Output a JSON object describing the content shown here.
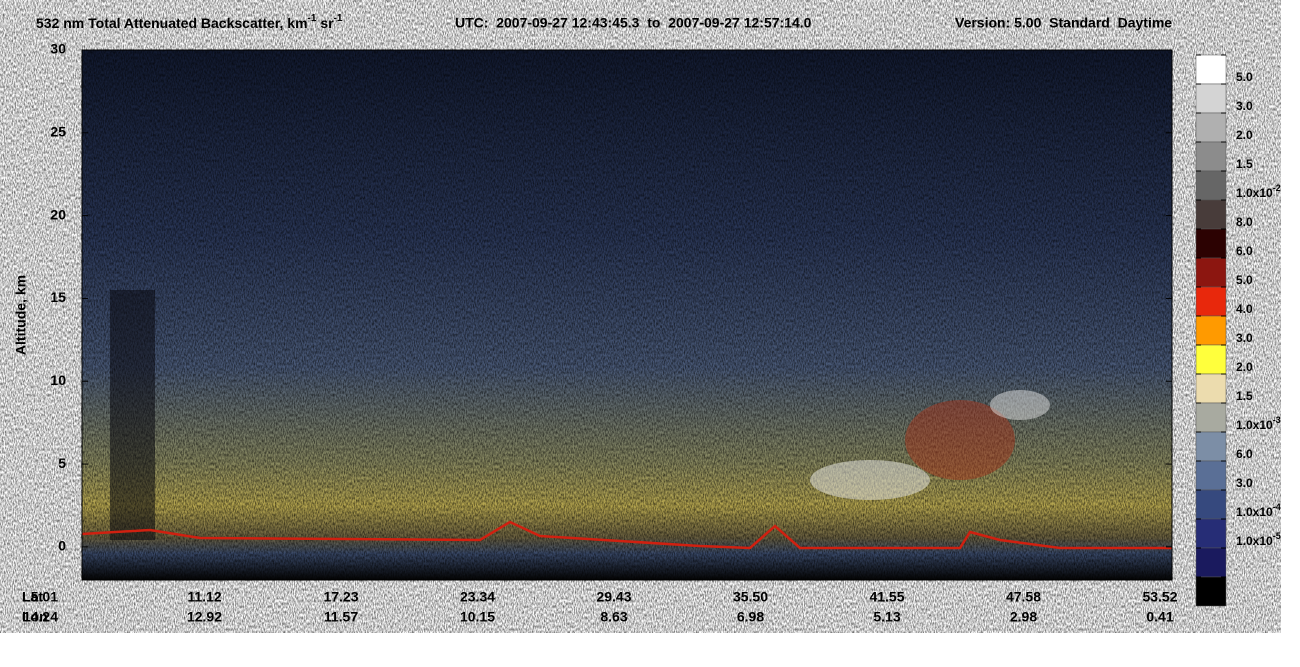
{
  "chart_data": {
    "type": "heatmap",
    "title_parts": [
      {
        "text": "532 nm Total Attenuated Backscatter, km"
      },
      {
        "sup": "-1"
      },
      {
        "text": " sr"
      },
      {
        "sup": "-1"
      }
    ],
    "utc": "UTC:  2007-09-27 12:43:45.3  to  2007-09-27 12:57:14.0",
    "version": "Version: 5.00  Standard  Daytime",
    "y_label": "Altitude, km",
    "ylim": [
      -2,
      30
    ],
    "yticks": [
      0,
      5,
      10,
      15,
      20,
      25,
      30
    ],
    "x_rows": [
      {
        "name": "Lat",
        "labels": [
          "5.01",
          "11.12",
          "17.23",
          "23.34",
          "29.43",
          "35.50",
          "41.55",
          "47.58",
          "53.52"
        ]
      },
      {
        "name": "Lon",
        "labels": [
          "14.24",
          "12.92",
          "11.57",
          "10.15",
          "8.63",
          "6.98",
          "5.13",
          "2.98",
          "0.41"
        ]
      }
    ],
    "colorbar": {
      "colors": [
        "#ffffff",
        "#d4d4d4",
        "#b0b0b0",
        "#8c8c8c",
        "#666666",
        "#483c3a",
        "#2c0202",
        "#8c1610",
        "#e8280c",
        "#ff9a00",
        "#ffff3c",
        "#ecdcae",
        "#a8aaa0",
        "#7c8ea6",
        "#5a6f96",
        "#36497e",
        "#262d76",
        "#1a1a5e",
        "#000000"
      ],
      "labels": [
        "5.0",
        "3.0",
        "2.0",
        "1.5",
        {
          "base": "1.0x10",
          "exp": "-2"
        },
        "8.0",
        "6.0",
        "5.0",
        "4.0",
        "3.0",
        "2.0",
        "1.5",
        {
          "base": "1.0x10",
          "exp": "-3"
        },
        "6.0",
        "3.0",
        {
          "base": "1.0x10",
          "exp": "-4"
        },
        {
          "base": "1.0x10",
          "exp": "-5"
        }
      ]
    }
  }
}
